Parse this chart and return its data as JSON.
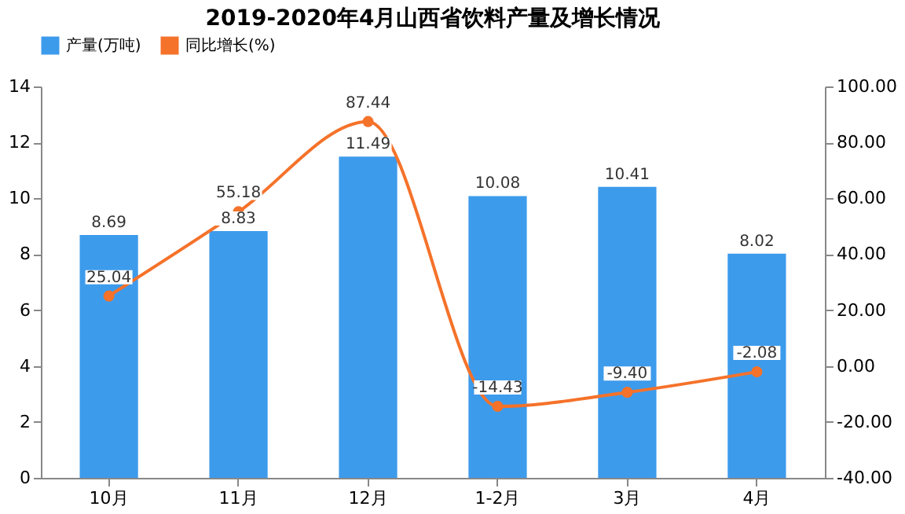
{
  "chart_data": {
    "type": "bar",
    "title": "2019-2020年4月山西省饮料产量及增长情况",
    "categories": [
      "10月",
      "11月",
      "12月",
      "1-2月",
      "3月",
      "4月"
    ],
    "series": [
      {
        "name": "产量(万吨)",
        "color": "#3d9bec",
        "values": [
          8.69,
          8.83,
          11.49,
          10.08,
          10.41,
          8.02
        ],
        "value_labels": [
          "8.69",
          "8.83",
          "11.49",
          "10.08",
          "10.41",
          "8.02"
        ]
      },
      {
        "name": "同比增长(%)",
        "type": "line",
        "axis": "y2",
        "color": "#f5722a",
        "values": [
          25.04,
          55.18,
          87.44,
          -14.43,
          -9.4,
          -2.08
        ],
        "value_labels": [
          "25.04",
          "55.18",
          "87.44",
          "-14.43",
          "-9.40",
          "-2.08"
        ]
      }
    ],
    "ylim": [
      0,
      14
    ],
    "yticks": [
      0,
      2,
      4,
      6,
      8,
      10,
      12,
      14
    ],
    "y2lim": [
      -40,
      100
    ],
    "y2ticks": [
      {
        "value": -40,
        "label": "-40.00"
      },
      {
        "value": -20,
        "label": "-20.00"
      },
      {
        "value": 0,
        "label": "0.00"
      },
      {
        "value": 20,
        "label": "20.00"
      },
      {
        "value": 40,
        "label": "40.00"
      },
      {
        "value": 60,
        "label": "60.00"
      },
      {
        "value": 80,
        "label": "80.00"
      },
      {
        "value": 100,
        "label": "100.00"
      }
    ],
    "legend": "top",
    "marker": "circle"
  }
}
